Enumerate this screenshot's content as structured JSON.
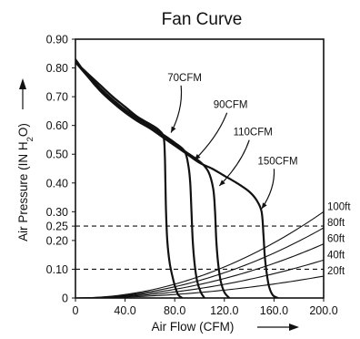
{
  "chart_data": {
    "type": "line",
    "title": "Fan Curve",
    "xlabel": "Air Flow (CFM)",
    "ylabel": "Air Pressure (IN H2O)",
    "xlim": [
      0,
      200
    ],
    "ylim": [
      0,
      0.9
    ],
    "x_ticks": [
      "0",
      "40.0",
      "80.0",
      "120.0",
      "160.0",
      "200.0"
    ],
    "y_ticks": [
      {
        "v": 0,
        "label": "0"
      },
      {
        "v": 0.1,
        "label": "0.10"
      },
      {
        "v": 0.2,
        "label": "0.20"
      },
      {
        "v": 0.25,
        "label": "0.25"
      },
      {
        "v": 0.3,
        "label": "0.30"
      },
      {
        "v": 0.4,
        "label": "0.40"
      },
      {
        "v": 0.5,
        "label": "0.50"
      },
      {
        "v": 0.6,
        "label": "0.60"
      },
      {
        "v": 0.7,
        "label": "0.70"
      },
      {
        "v": 0.8,
        "label": "0.80"
      },
      {
        "v": 0.9,
        "label": "0.90"
      }
    ],
    "reference_lines": [
      0.25,
      0.1
    ],
    "grid": false,
    "series": [
      {
        "name": "70CFM",
        "label_pos": [
          88,
          0.755
        ],
        "leader_to": [
          77,
          0.575
        ],
        "x": [
          0,
          10,
          20,
          30,
          40,
          50,
          60,
          67,
          71,
          72,
          72.5,
          73,
          74,
          76,
          79,
          81,
          83,
          86
        ],
        "y": [
          0.82,
          0.78,
          0.74,
          0.7,
          0.665,
          0.63,
          0.605,
          0.585,
          0.56,
          0.5,
          0.4,
          0.3,
          0.2,
          0.12,
          0.06,
          0.03,
          0.01,
          0
        ]
      },
      {
        "name": "90CFM",
        "label_pos": [
          125,
          0.66
        ],
        "leader_to": [
          96,
          0.48
        ],
        "x": [
          0,
          10,
          20,
          30,
          40,
          50,
          60,
          70,
          80,
          88,
          91,
          92.5,
          93.5,
          94.5,
          96,
          98,
          101,
          104
        ],
        "y": [
          0.82,
          0.775,
          0.73,
          0.69,
          0.655,
          0.625,
          0.598,
          0.57,
          0.54,
          0.51,
          0.46,
          0.4,
          0.3,
          0.2,
          0.12,
          0.06,
          0.02,
          0
        ]
      },
      {
        "name": "110CFM",
        "label_pos": [
          143,
          0.565
        ],
        "leader_to": [
          116,
          0.39
        ],
        "x": [
          0,
          10,
          20,
          30,
          40,
          50,
          60,
          70,
          80,
          90,
          100,
          107,
          111,
          112.5,
          113.5,
          115,
          117,
          120,
          124
        ],
        "y": [
          0.82,
          0.77,
          0.725,
          0.685,
          0.65,
          0.62,
          0.595,
          0.565,
          0.535,
          0.505,
          0.475,
          0.44,
          0.38,
          0.3,
          0.2,
          0.12,
          0.06,
          0.02,
          0
        ]
      },
      {
        "name": "150CFM",
        "label_pos": [
          163,
          0.465
        ],
        "leader_to": [
          150,
          0.31
        ],
        "x": [
          0,
          10,
          20,
          30,
          40,
          50,
          60,
          70,
          80,
          90,
          100,
          110,
          120,
          130,
          140,
          146,
          150,
          151.5,
          152.5,
          154,
          156,
          159,
          163
        ],
        "y": [
          0.83,
          0.77,
          0.72,
          0.68,
          0.645,
          0.615,
          0.59,
          0.56,
          0.53,
          0.5,
          0.47,
          0.45,
          0.425,
          0.4,
          0.37,
          0.34,
          0.3,
          0.22,
          0.15,
          0.09,
          0.04,
          0.01,
          0
        ]
      }
    ],
    "system_curves": [
      {
        "name": "100ft",
        "k": 7.5e-06
      },
      {
        "name": "80ft",
        "k": 6.1e-06
      },
      {
        "name": "60ft",
        "k": 4.7e-06
      },
      {
        "name": "40ft",
        "k": 3.3e-06
      },
      {
        "name": "20ft",
        "k": 1.9e-06
      }
    ]
  }
}
